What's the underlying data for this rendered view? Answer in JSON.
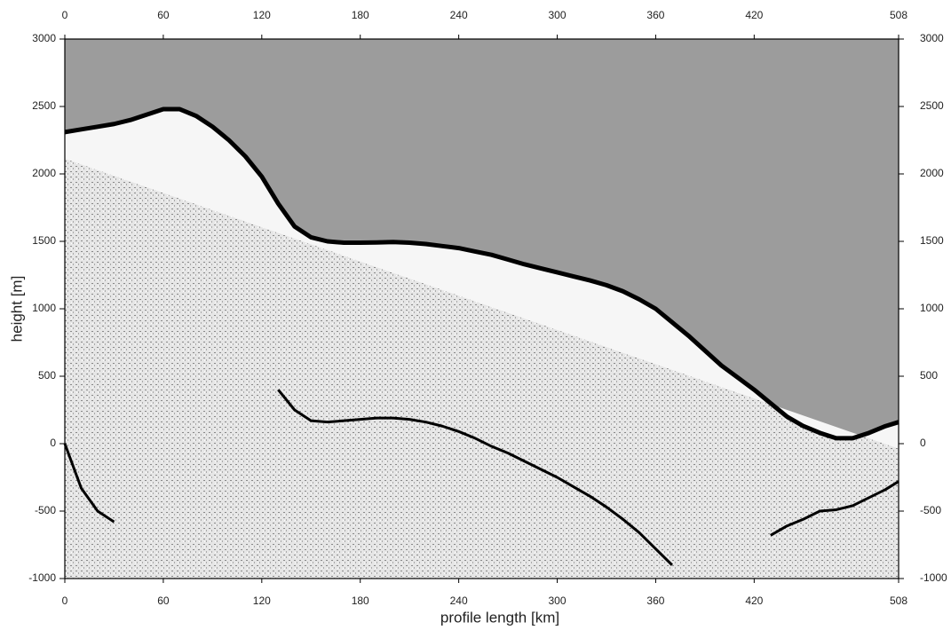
{
  "chart_data": {
    "type": "line",
    "x_label": "profile length [km]",
    "y_label": "height [m]",
    "x": [
      0,
      10,
      20,
      30,
      40,
      50,
      60,
      70,
      80,
      90,
      100,
      110,
      120,
      130,
      140,
      150,
      160,
      170,
      180,
      190,
      200,
      210,
      220,
      230,
      240,
      250,
      260,
      270,
      280,
      290,
      300,
      310,
      320,
      330,
      340,
      350,
      360,
      370,
      380,
      390,
      400,
      410,
      420,
      430,
      440,
      450,
      460,
      470,
      480,
      490,
      500,
      508
    ],
    "series": [
      {
        "color": "#000000",
        "fill_above": "#9c9c9c",
        "values": [
          2310,
          2330,
          2350,
          2370,
          2400,
          2440,
          2480,
          2480,
          2430,
          2350,
          2250,
          2130,
          1980,
          1780,
          1610,
          1530,
          1500,
          1490,
          1490,
          1492,
          1495,
          1490,
          1480,
          1465,
          1450,
          1425,
          1400,
          1365,
          1330,
          1300,
          1270,
          1240,
          1210,
          1175,
          1130,
          1070,
          1000,
          900,
          800,
          690,
          580,
          490,
          400,
          300,
          200,
          130,
          80,
          40,
          40,
          80,
          130,
          160
        ]
      },
      {
        "color": "#000000",
        "values": [
          0,
          -330,
          -500,
          -580,
          null,
          null,
          null,
          null,
          null,
          null,
          null,
          null,
          null,
          400,
          250,
          170,
          160,
          170,
          180,
          190,
          190,
          180,
          160,
          130,
          90,
          40,
          -20,
          -70,
          -130,
          -190,
          -250,
          -320,
          -390,
          -470,
          -560,
          -660,
          -780,
          -900,
          null,
          null,
          null,
          null,
          null,
          -680,
          -610,
          -560,
          -500,
          -490,
          -460,
          -400,
          -340,
          -280
        ]
      }
    ],
    "xlim": [
      0,
      508
    ],
    "xticks": [
      0,
      60,
      120,
      180,
      240,
      300,
      360,
      420,
      508
    ],
    "ylim": [
      -1000,
      3000
    ],
    "yticks": [
      -1000,
      -500,
      0,
      500,
      1000,
      1500,
      2000,
      2500,
      3000
    ]
  }
}
